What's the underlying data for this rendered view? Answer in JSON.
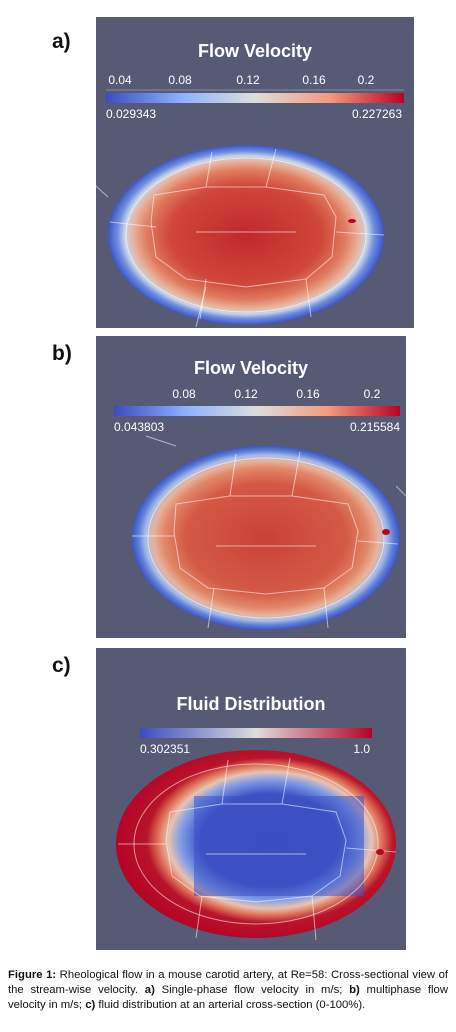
{
  "panels": [
    {
      "label": "a)",
      "title": "Flow Velocity",
      "ticks": [
        "0.04",
        "0.08",
        "0.12",
        "0.16",
        "0.2"
      ],
      "range_min": "0.029343",
      "range_max": "0.227263"
    },
    {
      "label": "b)",
      "title": "Flow Velocity",
      "ticks": [
        "0.08",
        "0.12",
        "0.16",
        "0.2"
      ],
      "range_min": "0.043803",
      "range_max": "0.215584"
    },
    {
      "label": "c)",
      "title": "Fluid Distribution",
      "ticks": [],
      "range_min": "0.302351",
      "range_max": "1.0"
    }
  ],
  "caption": {
    "figure_label": "Figure 1:",
    "text1": " Rheological flow in a mouse carotid artery, at Re=58: Cross-sectional view of the stream-wise velocity. ",
    "a_label": "a)",
    "a_text": " Single-phase flow velocity in m/s; ",
    "b_label": "b)",
    "b_text": " multiphase flow velocity in m/s; ",
    "c_label": "c)",
    "c_text": " fluid distribution at an arterial cross-section (0-100%)."
  },
  "colors": {
    "panel_bg": "#575a75",
    "cold": "#3a4cc0",
    "neutral": "#dddddd",
    "hot": "#b40426"
  }
}
